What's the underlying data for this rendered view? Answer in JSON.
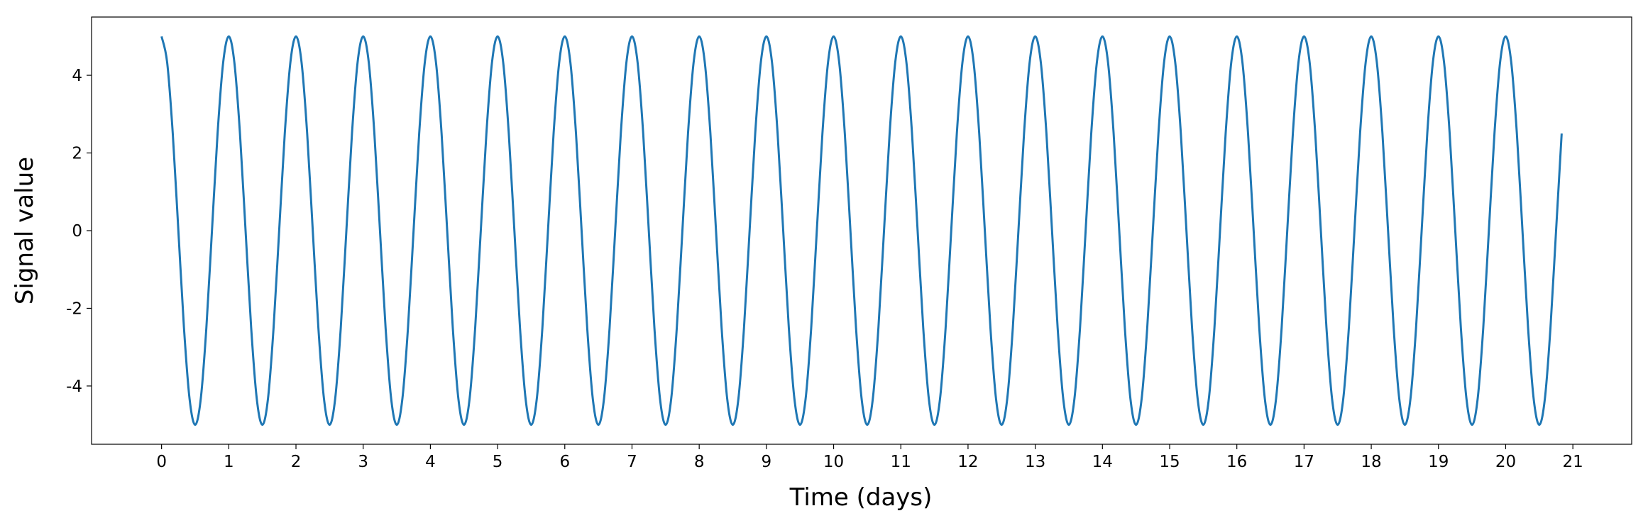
{
  "chart_data": {
    "type": "line",
    "xlabel": "Time (days)",
    "ylabel": "Signal value",
    "color": "#1f77b4",
    "grid": false,
    "xlim": [
      -1.0417,
      21.875
    ],
    "ylim": [
      -5.5,
      5.5
    ],
    "xticks": [
      0,
      1,
      2,
      3,
      4,
      5,
      6,
      7,
      8,
      9,
      10,
      11,
      12,
      13,
      14,
      15,
      16,
      17,
      18,
      19,
      20,
      21
    ],
    "yticks": [
      -4,
      -2,
      0,
      2,
      4
    ],
    "x": [
      0,
      0.0833,
      0.1667,
      0.25,
      0.3333,
      0.4167,
      0.5,
      0.5833,
      0.6667,
      0.75,
      0.8333,
      0.9167,
      1,
      1.0833,
      1.1667,
      1.25,
      1.3333,
      1.4167,
      1.5,
      1.5833,
      1.6667,
      1.75,
      1.8333,
      1.9167,
      2,
      2.0833,
      2.1667,
      2.25,
      2.3333,
      2.4167,
      2.5,
      2.5833,
      2.6667,
      2.75,
      2.8333,
      2.9167,
      3,
      3.0833,
      3.1667,
      3.25,
      3.3333,
      3.4167,
      3.5,
      3.5833,
      3.6667,
      3.75,
      3.8333,
      3.9167,
      4,
      4.0833,
      4.1667,
      4.25,
      4.3333,
      4.4167,
      4.5,
      4.5833,
      4.6667,
      4.75,
      4.8333,
      4.9167,
      5,
      5.0833,
      5.1667,
      5.25,
      5.3333,
      5.4167,
      5.5,
      5.5833,
      5.6667,
      5.75,
      5.8333,
      5.9167,
      6,
      6.0833,
      6.1667,
      6.25,
      6.3333,
      6.4167,
      6.5,
      6.5833,
      6.6667,
      6.75,
      6.8333,
      6.9167,
      7,
      7.0833,
      7.1667,
      7.25,
      7.3333,
      7.4167,
      7.5,
      7.5833,
      7.6667,
      7.75,
      7.8333,
      7.9167,
      8,
      8.0833,
      8.1667,
      8.25,
      8.3333,
      8.4167,
      8.5,
      8.5833,
      8.6667,
      8.75,
      8.8333,
      8.9167,
      9,
      9.0833,
      9.1667,
      9.25,
      9.3333,
      9.4167,
      9.5,
      9.5833,
      9.6667,
      9.75,
      9.8333,
      9.9167,
      10,
      10.0833,
      10.1667,
      10.25,
      10.3333,
      10.4167,
      10.5,
      10.5833,
      10.6667,
      10.75,
      10.8333,
      10.9167,
      11,
      11.0833,
      11.1667,
      11.25,
      11.3333,
      11.4167,
      11.5,
      11.5833,
      11.6667,
      11.75,
      11.8333,
      11.9167,
      12,
      12.0833,
      12.1667,
      12.25,
      12.3333,
      12.4167,
      12.5,
      12.5833,
      12.6667,
      12.75,
      12.8333,
      12.9167,
      13,
      13.0833,
      13.1667,
      13.25,
      13.3333,
      13.4167,
      13.5,
      13.5833,
      13.6667,
      13.75,
      13.8333,
      13.9167,
      14,
      14.0833,
      14.1667,
      14.25,
      14.3333,
      14.4167,
      14.5,
      14.5833,
      14.6667,
      14.75,
      14.8333,
      14.9167,
      15,
      15.0833,
      15.1667,
      15.25,
      15.3333,
      15.4167,
      15.5,
      15.5833,
      15.6667,
      15.75,
      15.8333,
      15.9167,
      16,
      16.0833,
      16.1667,
      16.25,
      16.3333,
      16.4167,
      16.5,
      16.5833,
      16.6667,
      16.75,
      16.8333,
      16.9167,
      17,
      17.0833,
      17.1667,
      17.25,
      17.3333,
      17.4167,
      17.5,
      17.5833,
      17.6667,
      17.75,
      17.8333,
      17.9167,
      18,
      18.0833,
      18.1667,
      18.25,
      18.3333,
      18.4167,
      18.5,
      18.5833,
      18.6667,
      18.75,
      18.8333,
      18.9167,
      19,
      19.0833,
      19.1667,
      19.25,
      19.3333,
      19.4167,
      19.5,
      19.5833,
      19.6667,
      19.75,
      19.8333,
      19.9167,
      20,
      20.0833,
      20.1667,
      20.25,
      20.3333,
      20.4167,
      20.5,
      20.5833,
      20.6667,
      20.75,
      20.8333
    ],
    "values": [
      5,
      4.33,
      2.5,
      0,
      -2.5,
      -4.33,
      -5,
      -4.33,
      -2.5,
      0,
      2.5,
      4.33,
      5,
      4.33,
      2.5,
      0,
      -2.5,
      -4.33,
      -5,
      -4.33,
      -2.5,
      0,
      2.5,
      4.33,
      5,
      4.33,
      2.5,
      0,
      -2.5,
      -4.33,
      -5,
      -4.33,
      -2.5,
      0,
      2.5,
      4.33,
      5,
      4.33,
      2.5,
      0,
      -2.5,
      -4.33,
      -5,
      -4.33,
      -2.5,
      0,
      2.5,
      4.33,
      5,
      4.33,
      2.5,
      0,
      -2.5,
      -4.33,
      -5,
      -4.33,
      -2.5,
      0,
      2.5,
      4.33,
      5,
      4.33,
      2.5,
      0,
      -2.5,
      -4.33,
      -5,
      -4.33,
      -2.5,
      0,
      2.5,
      4.33,
      5,
      4.33,
      2.5,
      0,
      -2.5,
      -4.33,
      -5,
      -4.33,
      -2.5,
      0,
      2.5,
      4.33,
      5,
      4.33,
      2.5,
      0,
      -2.5,
      -4.33,
      -5,
      -4.33,
      -2.5,
      0,
      2.5,
      4.33,
      5,
      4.33,
      2.5,
      0,
      -2.5,
      -4.33,
      -5,
      -4.33,
      -2.5,
      0,
      2.5,
      4.33,
      5,
      4.33,
      2.5,
      0,
      -2.5,
      -4.33,
      -5,
      -4.33,
      -2.5,
      0,
      2.5,
      4.33,
      5,
      4.33,
      2.5,
      0,
      -2.5,
      -4.33,
      -5,
      -4.33,
      -2.5,
      0,
      2.5,
      4.33,
      5,
      4.33,
      2.5,
      0,
      -2.5,
      -4.33,
      -5,
      -4.33,
      -2.5,
      0,
      2.5,
      4.33,
      5,
      4.33,
      2.5,
      0,
      -2.5,
      -4.33,
      -5,
      -4.33,
      -2.5,
      0,
      2.5,
      4.33,
      5,
      4.33,
      2.5,
      0,
      -2.5,
      -4.33,
      -5,
      -4.33,
      -2.5,
      0,
      2.5,
      4.33,
      5,
      4.33,
      2.5,
      0,
      -2.5,
      -4.33,
      -5,
      -4.33,
      -2.5,
      0,
      2.5,
      4.33,
      5,
      4.33,
      2.5,
      0,
      -2.5,
      -4.33,
      -5,
      -4.33,
      -2.5,
      0,
      2.5,
      4.33,
      5,
      4.33,
      2.5,
      0,
      -2.5,
      -4.33,
      -5,
      -4.33,
      -2.5,
      0,
      2.5,
      4.33,
      5,
      4.33,
      2.5,
      0,
      -2.5,
      -4.33,
      -5,
      -4.33,
      -2.5,
      0,
      2.5,
      4.33,
      5,
      4.33,
      2.5,
      0,
      -2.5,
      -4.33,
      -5,
      -4.33,
      -2.5,
      0,
      2.5,
      4.33,
      5,
      4.33,
      2.5,
      0,
      -2.5,
      -4.33,
      -5,
      -4.33,
      -2.5,
      0,
      2.5,
      4.33,
      5,
      4.33,
      2.5,
      0,
      -2.5,
      -4.33,
      -5,
      -4.33,
      -2.5,
      0,
      2.5
    ]
  }
}
